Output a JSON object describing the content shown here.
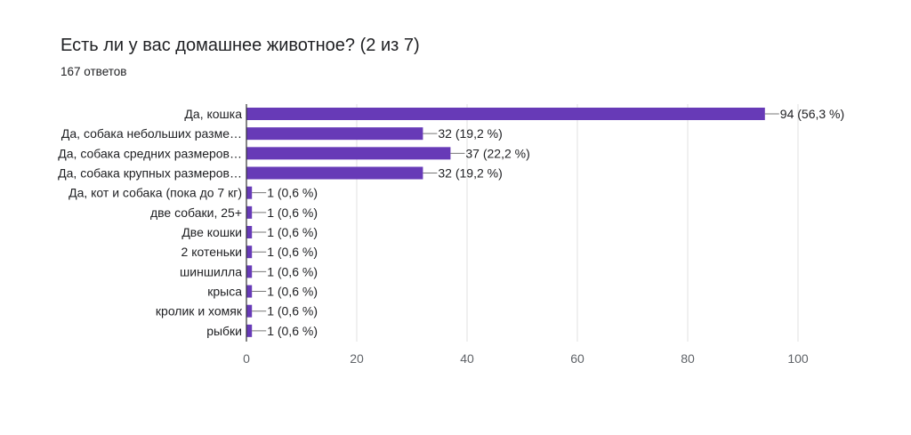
{
  "header": {
    "title": "Есть ли у вас домашнее животное?  (2 из 7)",
    "responses": "167 ответов"
  },
  "colors": {
    "bar": "#673ab7",
    "grid": "#e0e0e0",
    "axis": "#333333",
    "leader": "#777777"
  },
  "chart_data": {
    "type": "bar",
    "orientation": "horizontal",
    "title": "Есть ли у вас домашнее животное?  (2 из 7)",
    "subtitle": "167 ответов",
    "categories": [
      "Да, кошка",
      "Да, собака небольших разме…",
      "Да, собака средних размеров…",
      "Да, собака крупных размеров…",
      "Да, кот и собака (пока до 7 кг)",
      "две собаки, 25+",
      "Две кошки",
      "2 котеньки",
      "шиншилла",
      "крыса",
      "кролик и хомяк",
      "рыбки"
    ],
    "values": [
      94,
      32,
      37,
      32,
      1,
      1,
      1,
      1,
      1,
      1,
      1,
      1
    ],
    "data_labels": [
      "94 (56,3 %)",
      "32 (19,2 %)",
      "37 (22,2 %)",
      "32 (19,2 %)",
      "1 (0,6 %)",
      "1 (0,6 %)",
      "1 (0,6 %)",
      "1 (0,6 %)",
      "1 (0,6 %)",
      "1 (0,6 %)",
      "1 (0,6 %)",
      "1 (0,6 %)"
    ],
    "xticks": [
      "0",
      "20",
      "40",
      "60",
      "80",
      "100"
    ],
    "xlim": [
      0,
      100
    ],
    "xlabel": "",
    "ylabel": "",
    "grid": true
  }
}
